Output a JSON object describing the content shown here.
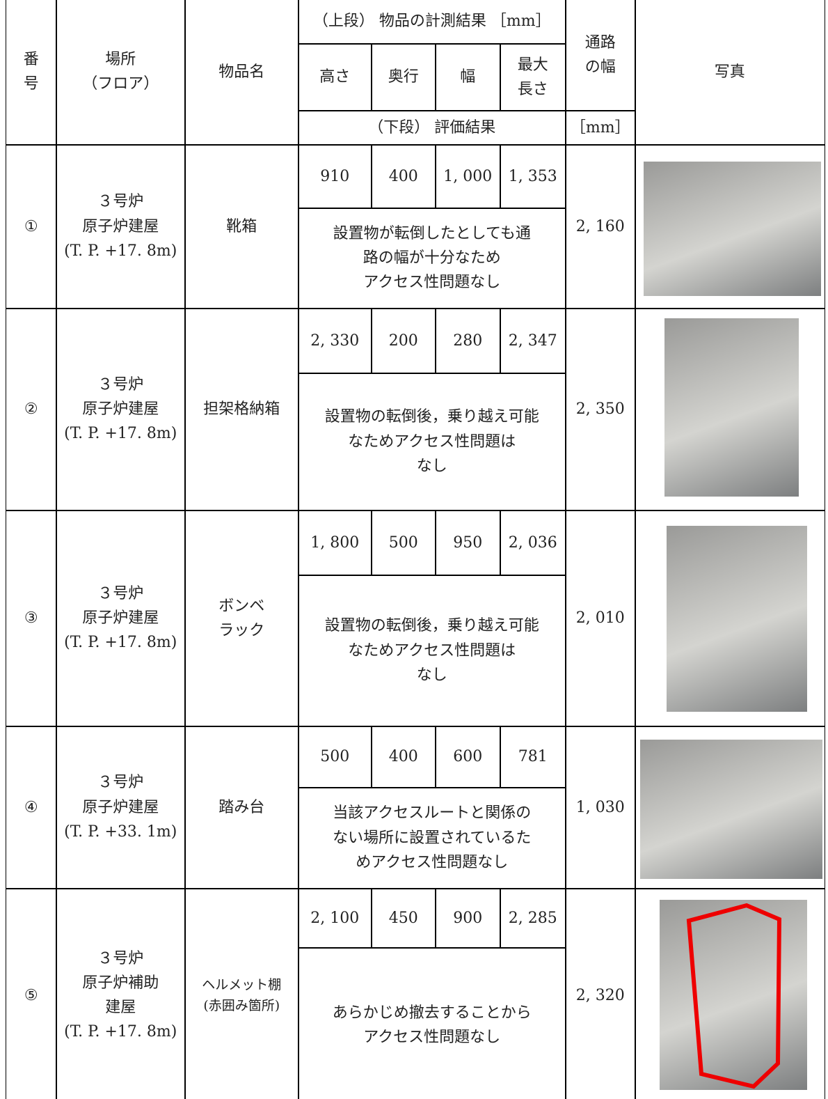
{
  "table": {
    "header": {
      "number": "番\n号",
      "location": "場所\n（フロア）",
      "item": "物品名",
      "measure_title": "（上段） 物品の計測結果 ［mm］",
      "height": "高さ",
      "depth": "奥行",
      "width": "幅",
      "max_length": "最大\n長さ",
      "evaluation_title": "（下段） 評価結果",
      "passage": "通路\nの幅",
      "passage_unit": "［mm］",
      "photo": "写真"
    },
    "rows": [
      {
        "number": "①",
        "location": "３号炉\n原子炉建屋\n(T. P. +17. 8m)",
        "item": "靴箱",
        "measures": [
          "910",
          "400",
          "1, 000",
          "1, 353"
        ],
        "evaluation": "設置物が転倒したとしても通\n路の幅が十分なため\nアクセス性問題なし",
        "passage": "2, 160"
      },
      {
        "number": "②",
        "location": "３号炉\n原子炉建屋\n(T. P. +17. 8m)",
        "item": "担架格納箱",
        "measures": [
          "2, 330",
          "200",
          "280",
          "2, 347"
        ],
        "evaluation": "設置物の転倒後，乗り越え可能\nなためアクセス性問題は\nなし",
        "passage": "2, 350"
      },
      {
        "number": "③",
        "location": "３号炉\n原子炉建屋\n(T. P. +17. 8m)",
        "item": "ボンベ\nラック",
        "measures": [
          "1, 800",
          "500",
          "950",
          "2, 036"
        ],
        "evaluation": "設置物の転倒後，乗り越え可能\nなためアクセス性問題は\nなし",
        "passage": "2, 010"
      },
      {
        "number": "④",
        "location": "３号炉\n原子炉建屋\n(T. P. +33. 1m)",
        "item": "踏み台",
        "measures": [
          "500",
          "400",
          "600",
          "781"
        ],
        "evaluation": "当該アクセスルートと関係の\nない場所に設置されているた\nめアクセス性問題なし",
        "passage": "1, 030"
      },
      {
        "number": "⑤",
        "location": "３号炉\n原子炉補助\n建屋\n(T. P. +17. 8m)",
        "item": "ヘルメット棚\n(赤囲み箇所)",
        "measures": [
          "2, 100",
          "450",
          "900",
          "2, 285"
        ],
        "evaluation": "あらかじめ撤去することから\nアクセス性問題なし",
        "passage": "2, 320"
      }
    ]
  }
}
